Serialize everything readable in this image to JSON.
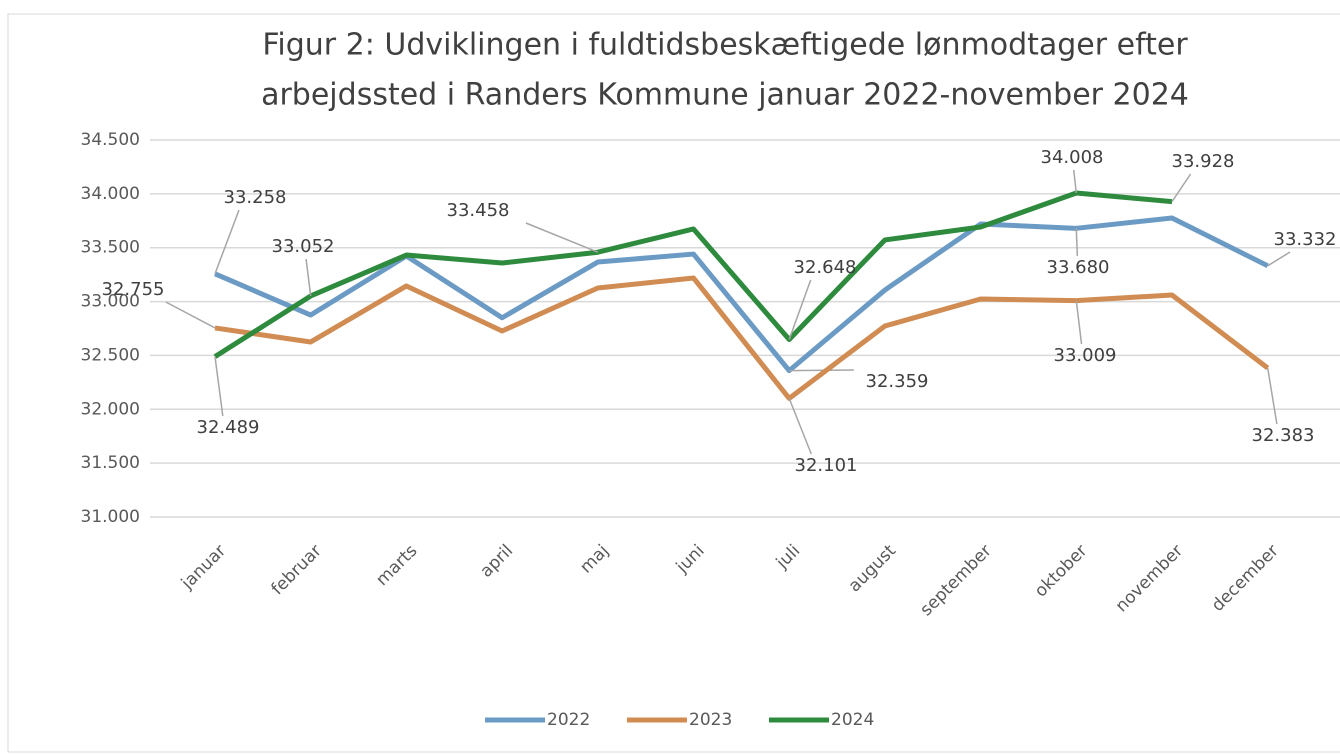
{
  "chart_data": {
    "type": "line",
    "title": [
      "Figur 2: Udviklingen i fuldtidsbeskæftigede lønmodtager efter",
      "arbejdssted i Randers Kommune januar 2022-november 2024"
    ],
    "categories": [
      "januar",
      "februar",
      "marts",
      "april",
      "maj",
      "juni",
      "juli",
      "august",
      "september",
      "oktober",
      "november",
      "december"
    ],
    "series": [
      {
        "name": "2022",
        "color": "#6b9bc4",
        "values": [
          33258,
          32875,
          33423,
          32850,
          33367,
          33441,
          32359,
          33107,
          33720,
          33680,
          33776,
          33332
        ],
        "value_labels": [
          "33.258",
          null,
          null,
          null,
          null,
          null,
          "32.359",
          null,
          null,
          "33.680",
          null,
          "33.332"
        ]
      },
      {
        "name": "2023",
        "color": "#d08c52",
        "values": [
          32755,
          32625,
          33145,
          32727,
          33126,
          33219,
          32101,
          32773,
          33024,
          33009,
          33061,
          32383
        ],
        "value_labels": [
          "32.755",
          null,
          null,
          null,
          null,
          null,
          "32.101",
          null,
          null,
          "33.009",
          null,
          "32.383"
        ]
      },
      {
        "name": "2024",
        "color": "#2e8b3e",
        "values": [
          32489,
          33052,
          33432,
          33358,
          33458,
          33674,
          32648,
          33572,
          33692,
          34008,
          33928,
          null
        ],
        "value_labels": [
          "32.489",
          "33.052",
          null,
          null,
          "33.458",
          null,
          "32.648",
          null,
          null,
          "34.008",
          "33.928",
          null
        ]
      }
    ],
    "ylim": [
      31000,
      34500
    ],
    "yticks": [
      {
        "value": 31000,
        "label": "31.000"
      },
      {
        "value": 31500,
        "label": "31.500"
      },
      {
        "value": 32000,
        "label": "32.000"
      },
      {
        "value": 32500,
        "label": "32.500"
      },
      {
        "value": 33000,
        "label": "33.000"
      },
      {
        "value": 33500,
        "label": "33.500"
      },
      {
        "value": 34000,
        "label": "34.000"
      },
      {
        "value": 34500,
        "label": "34.500"
      }
    ],
    "grid": true,
    "legend": "bottom"
  }
}
